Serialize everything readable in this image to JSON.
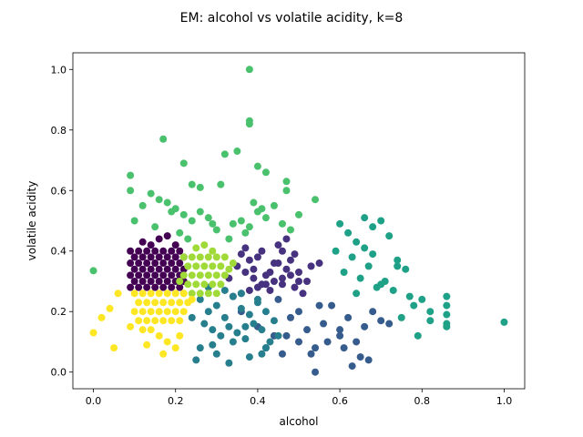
{
  "chart_data": {
    "type": "scatter",
    "title": "EM: alcohol vs volatile acidity, k=8",
    "xlabel": "alcohol",
    "ylabel": "volatile acidity",
    "xlim": [
      -0.05,
      1.05
    ],
    "ylim": [
      -0.055,
      1.055
    ],
    "xticks": [
      0.0,
      0.2,
      0.4,
      0.6,
      0.8,
      1.0
    ],
    "yticks": [
      0.0,
      0.2,
      0.4,
      0.6,
      0.8,
      1.0
    ],
    "xtick_labels": [
      "0.0",
      "0.2",
      "0.4",
      "0.6",
      "0.8",
      "1.0"
    ],
    "ytick_labels": [
      "0.0",
      "0.2",
      "0.4",
      "0.6",
      "0.8",
      "1.0"
    ],
    "grid": false,
    "legend": "none",
    "colors": {
      "dark-purple": "#440154",
      "indigo": "#46327e",
      "steel-blue": "#365c8d",
      "teal-blue": "#277f8e",
      "teal-green": "#1fa187",
      "green": "#4ac16d",
      "lime": "#a0da39",
      "yellow": "#fde725"
    },
    "series": [
      {
        "color": "#440154",
        "x": [
          0.09,
          0.11,
          0.13,
          0.15,
          0.17,
          0.19,
          0.21,
          0.1,
          0.12,
          0.14,
          0.16,
          0.18,
          0.2,
          0.22,
          0.09,
          0.11,
          0.13,
          0.15,
          0.17,
          0.19,
          0.21,
          0.1,
          0.12,
          0.14,
          0.16,
          0.18,
          0.2,
          0.22,
          0.09,
          0.11,
          0.13,
          0.15,
          0.17,
          0.19,
          0.21,
          0.1,
          0.12,
          0.14,
          0.16,
          0.18,
          0.2,
          0.22,
          0.09,
          0.11,
          0.13,
          0.15,
          0.17,
          0.19,
          0.21,
          0.14,
          0.16,
          0.18,
          0.12,
          0.2
        ],
        "y": [
          0.28,
          0.28,
          0.28,
          0.28,
          0.28,
          0.28,
          0.28,
          0.3,
          0.3,
          0.3,
          0.3,
          0.3,
          0.3,
          0.3,
          0.32,
          0.32,
          0.32,
          0.32,
          0.32,
          0.32,
          0.32,
          0.34,
          0.34,
          0.34,
          0.34,
          0.34,
          0.34,
          0.34,
          0.36,
          0.36,
          0.36,
          0.36,
          0.36,
          0.36,
          0.36,
          0.38,
          0.38,
          0.38,
          0.38,
          0.38,
          0.38,
          0.38,
          0.4,
          0.4,
          0.4,
          0.4,
          0.4,
          0.4,
          0.4,
          0.42,
          0.44,
          0.45,
          0.43,
          0.42
        ]
      },
      {
        "color": "#46327e",
        "x": [
          0.34,
          0.36,
          0.38,
          0.4,
          0.42,
          0.44,
          0.46,
          0.48,
          0.5,
          0.52,
          0.35,
          0.37,
          0.39,
          0.41,
          0.43,
          0.45,
          0.47,
          0.49,
          0.51,
          0.36,
          0.38,
          0.4,
          0.42,
          0.44,
          0.46,
          0.48,
          0.5,
          0.37,
          0.41,
          0.45,
          0.49,
          0.53,
          0.39,
          0.43,
          0.47,
          0.33,
          0.55,
          0.46
        ],
        "y": [
          0.25,
          0.26,
          0.27,
          0.28,
          0.29,
          0.3,
          0.31,
          0.32,
          0.33,
          0.3,
          0.35,
          0.33,
          0.31,
          0.29,
          0.27,
          0.36,
          0.34,
          0.28,
          0.26,
          0.39,
          0.37,
          0.38,
          0.32,
          0.36,
          0.4,
          0.37,
          0.3,
          0.41,
          0.4,
          0.42,
          0.39,
          0.35,
          0.34,
          0.33,
          0.44,
          0.31,
          0.36,
          0.29
        ]
      },
      {
        "color": "#365c8d",
        "x": [
          0.4,
          0.44,
          0.48,
          0.5,
          0.52,
          0.54,
          0.56,
          0.58,
          0.6,
          0.62,
          0.64,
          0.66,
          0.68,
          0.46,
          0.5,
          0.55,
          0.6,
          0.65,
          0.7,
          0.42,
          0.47,
          0.53,
          0.57,
          0.63,
          0.54,
          0.61,
          0.67,
          0.36,
          0.72,
          0.45
        ],
        "y": [
          0.15,
          0.12,
          0.18,
          0.2,
          0.14,
          0.08,
          0.16,
          0.22,
          0.12,
          0.18,
          0.1,
          0.15,
          0.2,
          0.06,
          0.1,
          0.22,
          0.14,
          0.05,
          0.17,
          0.08,
          0.12,
          0.06,
          0.1,
          0.02,
          0.0,
          0.08,
          0.04,
          0.2,
          0.16,
          0.24
        ]
      },
      {
        "color": "#277f8e",
        "x": [
          0.26,
          0.28,
          0.3,
          0.32,
          0.34,
          0.36,
          0.38,
          0.4,
          0.42,
          0.44,
          0.27,
          0.29,
          0.31,
          0.33,
          0.35,
          0.37,
          0.39,
          0.41,
          0.43,
          0.45,
          0.24,
          0.26,
          0.3,
          0.34,
          0.38,
          0.42,
          0.28,
          0.32,
          0.36,
          0.4,
          0.25,
          0.33,
          0.41,
          0.29,
          0.37
        ],
        "y": [
          0.24,
          0.2,
          0.22,
          0.18,
          0.25,
          0.21,
          0.19,
          0.23,
          0.2,
          0.17,
          0.16,
          0.14,
          0.12,
          0.15,
          0.13,
          0.11,
          0.16,
          0.14,
          0.1,
          0.12,
          0.18,
          0.08,
          0.06,
          0.1,
          0.05,
          0.08,
          0.28,
          0.27,
          0.26,
          0.24,
          0.04,
          0.03,
          0.06,
          0.09,
          0.15
        ]
      },
      {
        "color": "#1fa187",
        "x": [
          0.6,
          0.62,
          0.64,
          0.66,
          0.68,
          0.7,
          0.72,
          0.74,
          0.76,
          0.78,
          0.8,
          0.82,
          0.86,
          0.86,
          0.86,
          0.86,
          0.86,
          0.63,
          0.67,
          0.71,
          0.75,
          0.79,
          0.61,
          0.65,
          0.69,
          0.73,
          0.77,
          0.59,
          0.66,
          0.64,
          0.7,
          1.0,
          0.82,
          0.68,
          0.74
        ],
        "y": [
          0.49,
          0.46,
          0.43,
          0.51,
          0.48,
          0.5,
          0.45,
          0.35,
          0.34,
          0.22,
          0.24,
          0.2,
          0.25,
          0.22,
          0.19,
          0.16,
          0.15,
          0.38,
          0.35,
          0.3,
          0.18,
          0.12,
          0.33,
          0.31,
          0.28,
          0.27,
          0.25,
          0.4,
          0.41,
          0.26,
          0.29,
          0.165,
          0.17,
          0.39,
          0.37
        ]
      },
      {
        "color": "#4ac16d",
        "x": [
          0.38,
          0.38,
          0.38,
          0.35,
          0.32,
          0.17,
          0.22,
          0.09,
          0.09,
          0.31,
          0.4,
          0.42,
          0.47,
          0.47,
          0.24,
          0.26,
          0.12,
          0.14,
          0.16,
          0.18,
          0.2,
          0.22,
          0.24,
          0.26,
          0.28,
          0.3,
          0.34,
          0.36,
          0.38,
          0.4,
          0.42,
          0.44,
          0.46,
          0.48,
          0.5,
          0.54,
          0.1,
          0.0,
          0.15,
          0.21,
          0.23,
          0.33,
          0.37,
          0.41,
          0.19,
          0.29,
          0.39
        ],
        "y": [
          1.0,
          0.83,
          0.82,
          0.73,
          0.72,
          0.77,
          0.69,
          0.65,
          0.6,
          0.62,
          0.68,
          0.66,
          0.63,
          0.6,
          0.62,
          0.61,
          0.55,
          0.59,
          0.57,
          0.56,
          0.54,
          0.52,
          0.5,
          0.53,
          0.51,
          0.47,
          0.49,
          0.5,
          0.48,
          0.53,
          0.51,
          0.55,
          0.49,
          0.47,
          0.52,
          0.57,
          0.5,
          0.335,
          0.48,
          0.46,
          0.44,
          0.44,
          0.46,
          0.54,
          0.53,
          0.49,
          0.56
        ]
      },
      {
        "color": "#a0da39",
        "x": [
          0.22,
          0.24,
          0.26,
          0.28,
          0.3,
          0.32,
          0.23,
          0.25,
          0.27,
          0.29,
          0.31,
          0.22,
          0.24,
          0.26,
          0.28,
          0.3,
          0.32,
          0.23,
          0.25,
          0.27,
          0.29,
          0.31,
          0.22,
          0.24,
          0.26,
          0.28,
          0.3,
          0.25,
          0.27,
          0.29,
          0.33,
          0.21,
          0.34
        ],
        "y": [
          0.38,
          0.38,
          0.38,
          0.38,
          0.38,
          0.38,
          0.35,
          0.35,
          0.35,
          0.35,
          0.35,
          0.32,
          0.32,
          0.32,
          0.32,
          0.32,
          0.32,
          0.29,
          0.29,
          0.29,
          0.29,
          0.29,
          0.26,
          0.26,
          0.26,
          0.26,
          0.26,
          0.41,
          0.42,
          0.4,
          0.34,
          0.3,
          0.36
        ]
      },
      {
        "color": "#fde725",
        "x": [
          0.1,
          0.12,
          0.14,
          0.16,
          0.18,
          0.2,
          0.22,
          0.11,
          0.13,
          0.15,
          0.17,
          0.19,
          0.21,
          0.23,
          0.1,
          0.12,
          0.14,
          0.16,
          0.18,
          0.2,
          0.22,
          0.11,
          0.13,
          0.15,
          0.17,
          0.19,
          0.21,
          0.12,
          0.14,
          0.16,
          0.18,
          0.2,
          0.0,
          0.02,
          0.04,
          0.06,
          0.05,
          0.09,
          0.13,
          0.17,
          0.21,
          0.24
        ],
        "y": [
          0.26,
          0.26,
          0.26,
          0.26,
          0.26,
          0.26,
          0.26,
          0.23,
          0.23,
          0.23,
          0.23,
          0.23,
          0.23,
          0.23,
          0.2,
          0.2,
          0.2,
          0.2,
          0.2,
          0.2,
          0.2,
          0.17,
          0.17,
          0.17,
          0.17,
          0.17,
          0.17,
          0.14,
          0.14,
          0.12,
          0.1,
          0.08,
          0.13,
          0.18,
          0.21,
          0.26,
          0.08,
          0.15,
          0.09,
          0.06,
          0.12,
          0.24
        ]
      }
    ]
  }
}
